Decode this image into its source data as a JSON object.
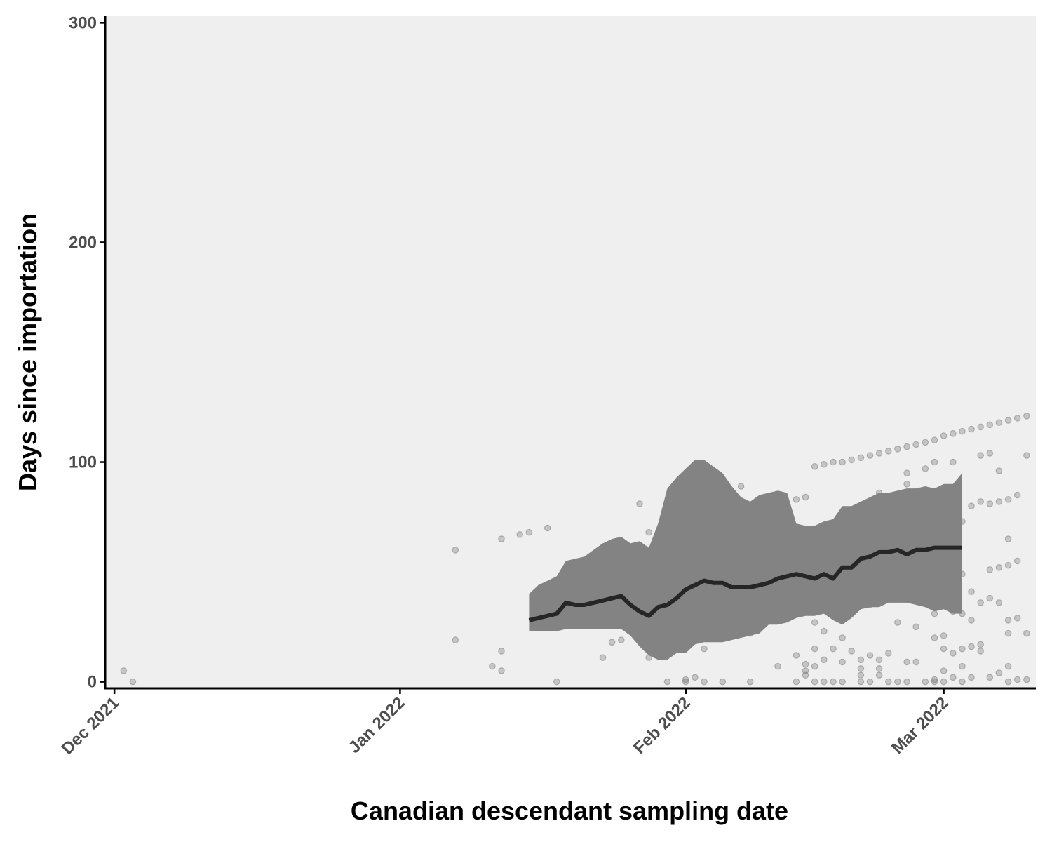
{
  "chart_data": {
    "type": "scatter",
    "xlabel": "Canadian descendant sampling date",
    "ylabel": "Days since importation",
    "x_axis_type": "date",
    "xlim": [
      "2021-11-30",
      "2022-03-11"
    ],
    "ylim": [
      -3,
      303
    ],
    "x_ticks": [
      {
        "date": "2021-12-01",
        "label": "Dec 2021"
      },
      {
        "date": "2022-01-01",
        "label": "Jan 2022"
      },
      {
        "date": "2022-02-01",
        "label": "Feb 2022"
      },
      {
        "date": "2022-03-01",
        "label": "Mar 2022"
      }
    ],
    "y_ticks": [
      {
        "value": 0,
        "label": "0"
      },
      {
        "value": 100,
        "label": "100"
      },
      {
        "value": 200,
        "label": "200"
      },
      {
        "value": 300,
        "label": "300"
      }
    ],
    "grid": false,
    "colors": {
      "background": "#efefef",
      "ribbon": "#838383",
      "line": "#262626",
      "points": "#6e6e6e"
    },
    "series": [
      {
        "kind": "points",
        "points": [
          [
            "2021-12-02",
            5
          ],
          [
            "2021-12-03",
            0
          ],
          [
            "2022-01-07",
            60
          ],
          [
            "2022-01-07",
            19
          ],
          [
            "2022-01-11",
            7
          ],
          [
            "2022-01-12",
            65
          ],
          [
            "2022-01-12",
            14
          ],
          [
            "2022-01-12",
            5
          ],
          [
            "2022-01-14",
            67
          ],
          [
            "2022-01-15",
            68
          ],
          [
            "2022-01-17",
            70
          ],
          [
            "2022-01-18",
            0
          ],
          [
            "2022-01-20",
            32
          ],
          [
            "2022-01-22",
            41
          ],
          [
            "2022-01-23",
            11
          ],
          [
            "2022-01-24",
            18
          ],
          [
            "2022-01-25",
            44
          ],
          [
            "2022-01-25",
            19
          ],
          [
            "2022-01-26",
            38
          ],
          [
            "2022-01-27",
            81
          ],
          [
            "2022-01-27",
            22
          ],
          [
            "2022-01-28",
            68
          ],
          [
            "2022-01-28",
            11
          ],
          [
            "2022-01-29",
            63
          ],
          [
            "2022-01-30",
            65
          ],
          [
            "2022-01-30",
            42
          ],
          [
            "2022-01-30",
            0
          ],
          [
            "2022-01-31",
            84
          ],
          [
            "2022-01-31",
            54
          ],
          [
            "2022-01-31",
            27
          ],
          [
            "2022-02-01",
            85
          ],
          [
            "2022-02-01",
            31
          ],
          [
            "2022-02-01",
            1
          ],
          [
            "2022-02-01",
            0
          ],
          [
            "2022-02-02",
            86
          ],
          [
            "2022-02-02",
            84
          ],
          [
            "2022-02-02",
            20
          ],
          [
            "2022-02-02",
            2
          ],
          [
            "2022-02-03",
            56
          ],
          [
            "2022-02-03",
            33
          ],
          [
            "2022-02-03",
            22
          ],
          [
            "2022-02-03",
            15
          ],
          [
            "2022-02-03",
            0
          ],
          [
            "2022-02-04",
            58
          ],
          [
            "2022-02-04",
            22
          ],
          [
            "2022-02-05",
            88
          ],
          [
            "2022-02-05",
            0
          ],
          [
            "2022-02-06",
            76
          ],
          [
            "2022-02-07",
            89
          ],
          [
            "2022-02-07",
            77
          ],
          [
            "2022-02-08",
            69
          ],
          [
            "2022-02-08",
            61
          ],
          [
            "2022-02-08",
            32
          ],
          [
            "2022-02-08",
            22
          ],
          [
            "2022-02-08",
            0
          ],
          [
            "2022-02-09",
            70
          ],
          [
            "2022-02-10",
            71
          ],
          [
            "2022-02-11",
            7
          ],
          [
            "2022-02-12",
            64
          ],
          [
            "2022-02-12",
            60
          ],
          [
            "2022-02-12",
            29
          ],
          [
            "2022-02-13",
            83
          ],
          [
            "2022-02-13",
            35
          ],
          [
            "2022-02-13",
            12
          ],
          [
            "2022-02-13",
            0
          ],
          [
            "2022-02-14",
            84
          ],
          [
            "2022-02-14",
            40
          ],
          [
            "2022-02-14",
            32
          ],
          [
            "2022-02-14",
            8
          ],
          [
            "2022-02-14",
            5
          ],
          [
            "2022-02-14",
            3
          ],
          [
            "2022-02-15",
            98
          ],
          [
            "2022-02-15",
            42
          ],
          [
            "2022-02-15",
            27
          ],
          [
            "2022-02-15",
            15
          ],
          [
            "2022-02-15",
            7
          ],
          [
            "2022-02-15",
            0
          ],
          [
            "2022-02-16",
            99
          ],
          [
            "2022-02-16",
            36
          ],
          [
            "2022-02-16",
            23
          ],
          [
            "2022-02-16",
            10
          ],
          [
            "2022-02-16",
            0
          ],
          [
            "2022-02-17",
            100
          ],
          [
            "2022-02-17",
            38
          ],
          [
            "2022-02-17",
            33
          ],
          [
            "2022-02-17",
            15
          ],
          [
            "2022-02-17",
            0
          ],
          [
            "2022-02-18",
            100
          ],
          [
            "2022-02-18",
            71
          ],
          [
            "2022-02-18",
            36
          ],
          [
            "2022-02-18",
            20
          ],
          [
            "2022-02-18",
            9
          ],
          [
            "2022-02-18",
            0
          ],
          [
            "2022-02-19",
            101
          ],
          [
            "2022-02-19",
            40
          ],
          [
            "2022-02-19",
            14
          ],
          [
            "2022-02-20",
            102
          ],
          [
            "2022-02-20",
            50
          ],
          [
            "2022-02-20",
            42
          ],
          [
            "2022-02-20",
            10
          ],
          [
            "2022-02-20",
            6
          ],
          [
            "2022-02-20",
            3
          ],
          [
            "2022-02-20",
            0
          ],
          [
            "2022-02-21",
            103
          ],
          [
            "2022-02-21",
            74
          ],
          [
            "2022-02-21",
            63
          ],
          [
            "2022-02-21",
            35
          ],
          [
            "2022-02-21",
            12
          ],
          [
            "2022-02-21",
            0
          ],
          [
            "2022-02-22",
            104
          ],
          [
            "2022-02-22",
            86
          ],
          [
            "2022-02-22",
            40
          ],
          [
            "2022-02-22",
            10
          ],
          [
            "2022-02-22",
            6
          ],
          [
            "2022-02-22",
            3
          ],
          [
            "2022-02-23",
            105
          ],
          [
            "2022-02-23",
            74
          ],
          [
            "2022-02-23",
            38
          ],
          [
            "2022-02-23",
            13
          ],
          [
            "2022-02-23",
            0
          ],
          [
            "2022-02-24",
            106
          ],
          [
            "2022-02-24",
            71
          ],
          [
            "2022-02-24",
            42
          ],
          [
            "2022-02-24",
            27
          ],
          [
            "2022-02-24",
            0
          ],
          [
            "2022-02-25",
            107
          ],
          [
            "2022-02-25",
            95
          ],
          [
            "2022-02-25",
            90
          ],
          [
            "2022-02-25",
            73
          ],
          [
            "2022-02-25",
            40
          ],
          [
            "2022-02-25",
            9
          ],
          [
            "2022-02-25",
            0
          ],
          [
            "2022-02-26",
            108
          ],
          [
            "2022-02-26",
            25
          ],
          [
            "2022-02-26",
            9
          ],
          [
            "2022-02-27",
            109
          ],
          [
            "2022-02-27",
            97
          ],
          [
            "2022-02-27",
            75
          ],
          [
            "2022-02-27",
            45
          ],
          [
            "2022-02-27",
            0
          ],
          [
            "2022-02-28",
            110
          ],
          [
            "2022-02-28",
            100
          ],
          [
            "2022-02-28",
            82
          ],
          [
            "2022-02-28",
            40
          ],
          [
            "2022-02-28",
            31
          ],
          [
            "2022-02-28",
            20
          ],
          [
            "2022-02-28",
            1
          ],
          [
            "2022-02-28",
            0
          ],
          [
            "2022-03-01",
            112
          ],
          [
            "2022-03-01",
            78
          ],
          [
            "2022-03-01",
            66
          ],
          [
            "2022-03-01",
            46
          ],
          [
            "2022-03-01",
            21
          ],
          [
            "2022-03-01",
            15
          ],
          [
            "2022-03-01",
            5
          ],
          [
            "2022-03-01",
            0
          ],
          [
            "2022-03-02",
            113
          ],
          [
            "2022-03-02",
            100
          ],
          [
            "2022-03-02",
            48
          ],
          [
            "2022-03-02",
            32
          ],
          [
            "2022-03-02",
            13
          ],
          [
            "2022-03-02",
            2
          ],
          [
            "2022-03-03",
            114
          ],
          [
            "2022-03-03",
            73
          ],
          [
            "2022-03-03",
            49
          ],
          [
            "2022-03-03",
            31
          ],
          [
            "2022-03-03",
            15
          ],
          [
            "2022-03-03",
            7
          ],
          [
            "2022-03-03",
            0
          ],
          [
            "2022-03-04",
            115
          ],
          [
            "2022-03-04",
            80
          ],
          [
            "2022-03-04",
            41
          ],
          [
            "2022-03-04",
            28
          ],
          [
            "2022-03-04",
            16
          ],
          [
            "2022-03-04",
            2
          ],
          [
            "2022-03-05",
            116
          ],
          [
            "2022-03-05",
            103
          ],
          [
            "2022-03-05",
            82
          ],
          [
            "2022-03-05",
            36
          ],
          [
            "2022-03-05",
            17
          ],
          [
            "2022-03-05",
            14
          ],
          [
            "2022-03-06",
            117
          ],
          [
            "2022-03-06",
            104
          ],
          [
            "2022-03-06",
            81
          ],
          [
            "2022-03-06",
            51
          ],
          [
            "2022-03-06",
            38
          ],
          [
            "2022-03-06",
            2
          ],
          [
            "2022-03-07",
            118
          ],
          [
            "2022-03-07",
            96
          ],
          [
            "2022-03-07",
            82
          ],
          [
            "2022-03-07",
            52
          ],
          [
            "2022-03-07",
            36
          ],
          [
            "2022-03-07",
            4
          ],
          [
            "2022-03-08",
            119
          ],
          [
            "2022-03-08",
            83
          ],
          [
            "2022-03-08",
            65
          ],
          [
            "2022-03-08",
            53
          ],
          [
            "2022-03-08",
            28
          ],
          [
            "2022-03-08",
            22
          ],
          [
            "2022-03-08",
            7
          ],
          [
            "2022-03-08",
            0
          ],
          [
            "2022-03-09",
            120
          ],
          [
            "2022-03-09",
            85
          ],
          [
            "2022-03-09",
            55
          ],
          [
            "2022-03-09",
            29
          ],
          [
            "2022-03-09",
            1
          ],
          [
            "2022-03-10",
            121
          ],
          [
            "2022-03-10",
            103
          ],
          [
            "2022-03-10",
            22
          ],
          [
            "2022-03-10",
            1
          ]
        ]
      },
      {
        "kind": "ribbon",
        "x": [
          "2022-01-15",
          "2022-01-16",
          "2022-01-17",
          "2022-01-18",
          "2022-01-19",
          "2022-01-20",
          "2022-01-21",
          "2022-01-22",
          "2022-01-23",
          "2022-01-24",
          "2022-01-25",
          "2022-01-26",
          "2022-01-27",
          "2022-01-28",
          "2022-01-29",
          "2022-01-30",
          "2022-01-31",
          "2022-02-01",
          "2022-02-02",
          "2022-02-03",
          "2022-02-04",
          "2022-02-05",
          "2022-02-06",
          "2022-02-07",
          "2022-02-08",
          "2022-02-09",
          "2022-02-10",
          "2022-02-11",
          "2022-02-12",
          "2022-02-13",
          "2022-02-14",
          "2022-02-15",
          "2022-02-16",
          "2022-02-17",
          "2022-02-18",
          "2022-02-19",
          "2022-02-20",
          "2022-02-21",
          "2022-02-22",
          "2022-02-23",
          "2022-02-24",
          "2022-02-25",
          "2022-02-26",
          "2022-02-27",
          "2022-02-28",
          "2022-03-01",
          "2022-03-02",
          "2022-03-03"
        ],
        "lower": [
          23,
          23,
          23,
          23,
          24,
          24,
          24,
          24,
          24,
          24,
          24,
          21,
          16,
          12,
          10,
          10,
          13,
          13,
          17,
          18,
          18,
          18,
          19,
          20,
          21,
          22,
          26,
          26,
          27,
          29,
          30,
          30,
          31,
          28,
          26,
          29,
          33,
          34,
          34,
          36,
          36,
          36,
          35,
          34,
          32,
          33,
          31,
          31
        ],
        "upper": [
          40,
          44,
          46,
          48,
          55,
          56,
          57,
          60,
          63,
          65,
          66,
          63,
          64,
          61,
          72,
          88,
          93,
          97,
          101,
          101,
          98,
          95,
          89,
          84,
          82,
          85,
          86,
          87,
          86,
          72,
          71,
          71,
          73,
          74,
          80,
          80,
          82,
          84,
          86,
          86,
          87,
          88,
          88,
          89,
          88,
          90,
          90,
          95
        ]
      },
      {
        "kind": "line",
        "x": [
          "2022-01-15",
          "2022-01-16",
          "2022-01-17",
          "2022-01-18",
          "2022-01-19",
          "2022-01-20",
          "2022-01-21",
          "2022-01-22",
          "2022-01-23",
          "2022-01-24",
          "2022-01-25",
          "2022-01-26",
          "2022-01-27",
          "2022-01-28",
          "2022-01-29",
          "2022-01-30",
          "2022-01-31",
          "2022-02-01",
          "2022-02-02",
          "2022-02-03",
          "2022-02-04",
          "2022-02-05",
          "2022-02-06",
          "2022-02-07",
          "2022-02-08",
          "2022-02-09",
          "2022-02-10",
          "2022-02-11",
          "2022-02-12",
          "2022-02-13",
          "2022-02-14",
          "2022-02-15",
          "2022-02-16",
          "2022-02-17",
          "2022-02-18",
          "2022-02-19",
          "2022-02-20",
          "2022-02-21",
          "2022-02-22",
          "2022-02-23",
          "2022-02-24",
          "2022-02-25",
          "2022-02-26",
          "2022-02-27",
          "2022-02-28",
          "2022-03-01",
          "2022-03-02",
          "2022-03-03"
        ],
        "y": [
          28,
          29,
          30,
          31,
          36,
          35,
          35,
          36,
          37,
          38,
          39,
          35,
          32,
          30,
          34,
          35,
          38,
          42,
          44,
          46,
          45,
          45,
          43,
          43,
          43,
          44,
          45,
          47,
          48,
          49,
          48,
          47,
          49,
          47,
          52,
          52,
          56,
          57,
          59,
          59,
          60,
          58,
          60,
          60,
          61,
          61,
          61,
          61
        ]
      }
    ]
  }
}
